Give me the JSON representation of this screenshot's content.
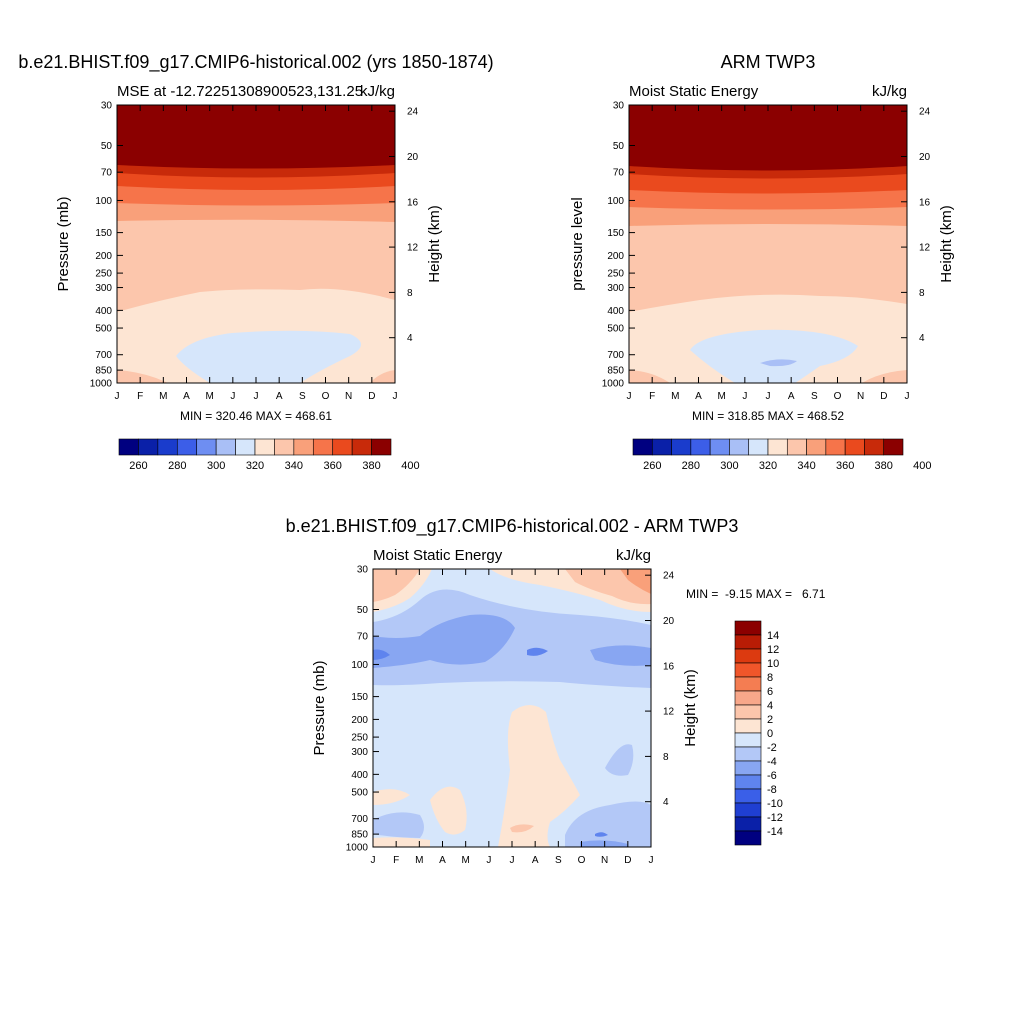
{
  "chart_data": [
    {
      "type": "heatmap",
      "title": "b.e21.BHIST.f09_g17.CMIP6-historical.002 (yrs 1850-1874)",
      "subtitle_left": "MSE at -12.72251308900523,131.25",
      "subtitle_right": "kJ/kg",
      "ylabel_left": "Pressure (mb)",
      "ylabel_right": "Height (km)",
      "x_ticks": [
        "J",
        "F",
        "M",
        "A",
        "M",
        "J",
        "J",
        "A",
        "S",
        "O",
        "N",
        "D",
        "J"
      ],
      "pressure_ticks": [
        30,
        50,
        70,
        100,
        150,
        200,
        250,
        300,
        400,
        500,
        700,
        850,
        1000
      ],
      "height_ticks": [
        24,
        20,
        16,
        12,
        8,
        4
      ],
      "stats": "MIN = 320.46 MAX = 468.61",
      "stats_min": 320.46,
      "stats_max": 468.61,
      "colorbar": {
        "orientation": "horizontal",
        "labels": [
          "260",
          "280",
          "300",
          "320",
          "340",
          "360",
          "380",
          "400"
        ]
      }
    },
    {
      "type": "heatmap",
      "title": "ARM TWP3",
      "subtitle_left": "Moist Static Energy",
      "subtitle_right": "kJ/kg",
      "ylabel_left": "pressure level",
      "ylabel_right": "Height (km)",
      "x_ticks": [
        "J",
        "F",
        "M",
        "A",
        "M",
        "J",
        "J",
        "A",
        "S",
        "O",
        "N",
        "D",
        "J"
      ],
      "pressure_ticks": [
        30,
        50,
        70,
        100,
        150,
        200,
        250,
        300,
        400,
        500,
        700,
        850,
        1000
      ],
      "height_ticks": [
        24,
        20,
        16,
        12,
        8,
        4
      ],
      "stats": "MIN = 318.85 MAX = 468.52",
      "stats_min": 318.85,
      "stats_max": 468.52,
      "colorbar": {
        "orientation": "horizontal",
        "labels": [
          "260",
          "280",
          "300",
          "320",
          "340",
          "360",
          "380",
          "400"
        ]
      }
    },
    {
      "type": "heatmap",
      "title": "b.e21.BHIST.f09_g17.CMIP6-historical.002 - ARM TWP3",
      "subtitle_left": "Moist Static Energy",
      "subtitle_right": "kJ/kg",
      "ylabel_left": "Pressure (mb)",
      "ylabel_right": "Height (km)",
      "x_ticks": [
        "J",
        "F",
        "M",
        "A",
        "M",
        "J",
        "J",
        "A",
        "S",
        "O",
        "N",
        "D",
        "J"
      ],
      "pressure_ticks": [
        30,
        50,
        70,
        100,
        150,
        200,
        250,
        300,
        400,
        500,
        700,
        850,
        1000
      ],
      "height_ticks": [
        24,
        20,
        16,
        12,
        8,
        4
      ],
      "stats": "MIN =  -9.15 MAX =   6.71",
      "stats_min": -9.15,
      "stats_max": 6.71,
      "colorbar": {
        "orientation": "vertical",
        "labels": [
          "14",
          "12",
          "10",
          "8",
          "6",
          "4",
          "2",
          "0",
          "-2",
          "-4",
          "-6",
          "-8",
          "-10",
          "-12",
          "-14"
        ]
      }
    }
  ],
  "colors": {
    "abs_levels": [
      "#000080",
      "#0a20a8",
      "#1a3ccc",
      "#3c5ee8",
      "#6e8ef2",
      "#a9bff6",
      "#d6e6fb",
      "#fde5d3",
      "#fcc6ac",
      "#f9a07a",
      "#f6744a",
      "#ea4a1e",
      "#c82a0a",
      "#8b0000"
    ],
    "diff_levels": [
      "#8b0000",
      "#b81c05",
      "#dc3a10",
      "#f0562a",
      "#f47d52",
      "#f8a78a",
      "#fcc6ac",
      "#fde5d3",
      "#d6e6fb",
      "#b3c8f7",
      "#88a6f2",
      "#5f84ee",
      "#3a5fe8",
      "#1f3fd2",
      "#0a20a8",
      "#000080"
    ]
  }
}
